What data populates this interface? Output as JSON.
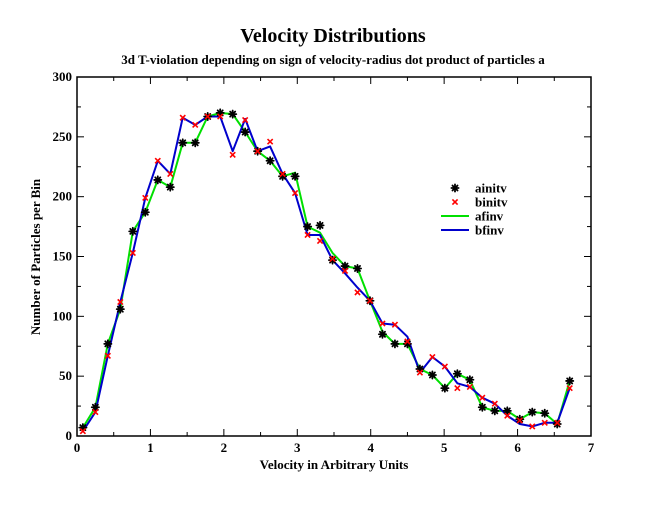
{
  "chart_data": {
    "type": "line",
    "title": "Velocity Distributions",
    "subtitle": "3d T-violation depending on sign of velocity-radius dot product of particles a",
    "xlabel": "Velocity in Arbitrary Units",
    "ylabel": "Number of Particles per Bin",
    "xlim": [
      0,
      7
    ],
    "ylim": [
      0,
      300
    ],
    "xticks": [
      0,
      1,
      2,
      3,
      4,
      5,
      6,
      7
    ],
    "yticks": [
      0,
      50,
      100,
      150,
      200,
      250,
      300
    ],
    "grid": false,
    "legend_position": "right",
    "x": [
      0.08,
      0.25,
      0.42,
      0.59,
      0.76,
      0.93,
      1.1,
      1.27,
      1.44,
      1.61,
      1.78,
      1.95,
      2.12,
      2.29,
      2.46,
      2.63,
      2.8,
      2.97,
      3.14,
      3.31,
      3.48,
      3.65,
      3.82,
      3.99,
      4.16,
      4.33,
      4.5,
      4.67,
      4.84,
      5.01,
      5.18,
      5.35,
      5.52,
      5.69,
      5.86,
      6.03,
      6.2,
      6.37,
      6.54,
      6.71
    ],
    "series": [
      {
        "name": "ainitv",
        "style": "markers",
        "marker": "star",
        "color": "#000000",
        "values": [
          7,
          24,
          77,
          106,
          171,
          187,
          214,
          208,
          245,
          245,
          267,
          270,
          269,
          254,
          238,
          230,
          217,
          217,
          175,
          176,
          147,
          142,
          140,
          113,
          85,
          77,
          77,
          56,
          51,
          40,
          52,
          47,
          24,
          21,
          21,
          14,
          20,
          19,
          10,
          46
        ]
      },
      {
        "name": "binitv",
        "style": "markers",
        "marker": "x",
        "color": "#ff0000",
        "values": [
          4,
          20,
          67,
          112,
          153,
          199,
          230,
          219,
          266,
          260,
          267,
          267,
          235,
          264,
          238,
          246,
          219,
          203,
          168,
          163,
          148,
          138,
          120,
          113,
          94,
          93,
          79,
          53,
          66,
          58,
          40,
          41,
          32,
          27,
          17,
          13,
          8,
          11,
          11,
          40
        ]
      },
      {
        "name": "afinv",
        "style": "line",
        "color": "#00e000",
        "values": [
          7,
          24,
          77,
          106,
          171,
          187,
          214,
          208,
          245,
          245,
          267,
          270,
          269,
          254,
          238,
          230,
          217,
          220,
          175,
          170,
          153,
          142,
          140,
          113,
          87,
          77,
          77,
          56,
          51,
          40,
          52,
          47,
          24,
          21,
          21,
          14,
          20,
          19,
          10,
          46
        ]
      },
      {
        "name": "bfinv",
        "style": "line",
        "color": "#0000cc",
        "values": [
          4,
          20,
          67,
          112,
          153,
          199,
          230,
          219,
          266,
          260,
          267,
          267,
          238,
          265,
          238,
          242,
          219,
          203,
          168,
          168,
          147,
          136,
          124,
          113,
          94,
          93,
          83,
          53,
          66,
          58,
          44,
          41,
          32,
          27,
          17,
          10,
          8,
          11,
          11,
          40
        ]
      }
    ]
  }
}
